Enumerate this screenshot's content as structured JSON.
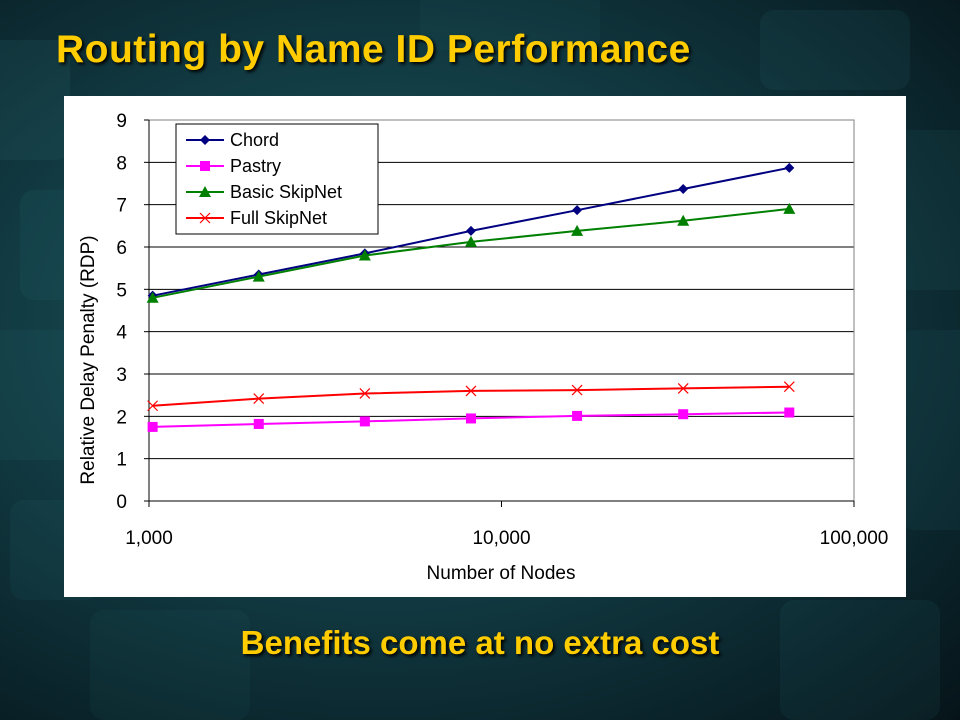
{
  "slide": {
    "title": "Routing by Name ID Performance",
    "subtitle": "Benefits come at no extra cost"
  },
  "colors": {
    "title": "#ffcc00",
    "chord": "#000080",
    "pastry": "#ff00ff",
    "basic_skipnet": "#008000",
    "full_skipnet": "#ff0000"
  },
  "chart_data": {
    "type": "line",
    "title": "",
    "xlabel": "Number of Nodes",
    "ylabel": "Relative Delay Penalty (RDP)",
    "x_scale": "log",
    "xlim": [
      1000,
      100000
    ],
    "ylim": [
      0,
      9
    ],
    "x_ticks": [
      "1,000",
      "10,000",
      "100,000"
    ],
    "y_ticks": [
      "0",
      "1",
      "2",
      "3",
      "4",
      "5",
      "6",
      "7",
      "8",
      "9"
    ],
    "grid": "horizontal",
    "legend_position": "top-left",
    "x": [
      1024,
      2048,
      4096,
      8192,
      16384,
      32768,
      65536
    ],
    "series": [
      {
        "name": "Chord",
        "marker": "diamond",
        "color": "#000080",
        "values": [
          4.85,
          5.35,
          5.85,
          6.38,
          6.87,
          7.37,
          7.87
        ]
      },
      {
        "name": "Pastry",
        "marker": "square",
        "color": "#ff00ff",
        "values": [
          1.75,
          1.82,
          1.88,
          1.95,
          2.01,
          2.05,
          2.09
        ]
      },
      {
        "name": "Basic SkipNet",
        "marker": "triangle",
        "color": "#008000",
        "values": [
          4.8,
          5.3,
          5.8,
          6.12,
          6.38,
          6.62,
          6.9
        ]
      },
      {
        "name": "Full SkipNet",
        "marker": "x",
        "color": "#ff0000",
        "values": [
          2.25,
          2.42,
          2.54,
          2.6,
          2.62,
          2.66,
          2.7
        ]
      }
    ]
  }
}
